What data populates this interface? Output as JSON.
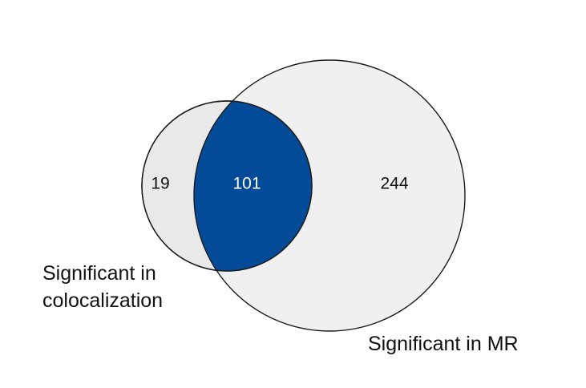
{
  "sets": {
    "colocalization": {
      "label_lines": [
        "Significant in",
        "colocalization"
      ],
      "fill_color": "#e9e9e9",
      "stroke_color": "#1a1a1a"
    },
    "mr": {
      "label": "Significant in MR",
      "fill_color": "#f0f0f0",
      "stroke_color": "#1a1a1a"
    }
  },
  "regions": {
    "colocalization_only": "19",
    "intersection": "101",
    "mr_only": "244"
  },
  "colors": {
    "intersection_fill": "#034a98",
    "intersection_text": "#ffffff",
    "count_text": "#111111"
  }
}
